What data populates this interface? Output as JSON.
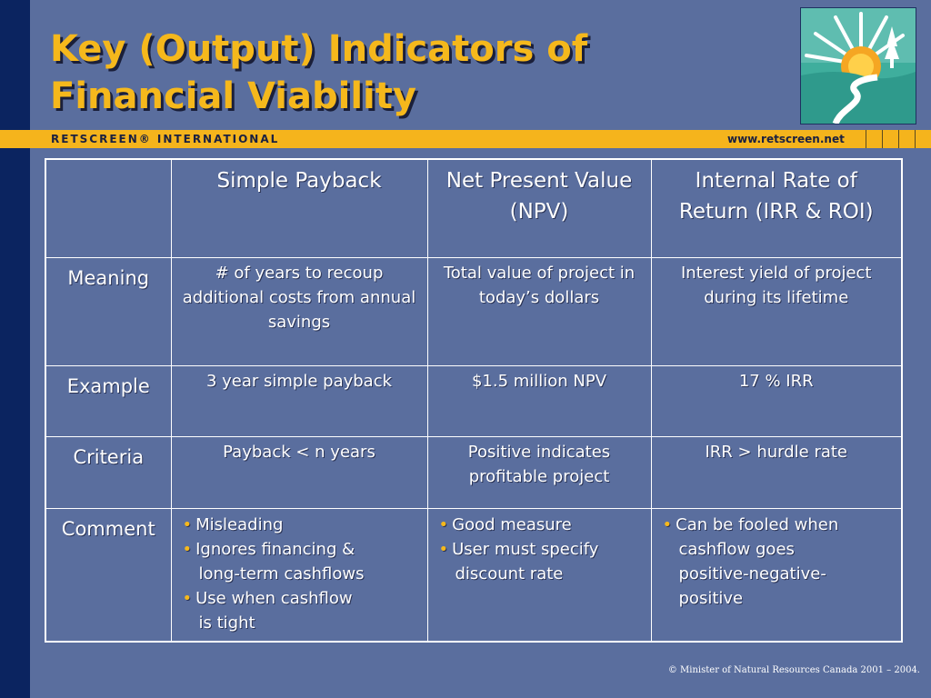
{
  "slide": {
    "title_line1": "Key (Output) Indicators of",
    "title_line2": "Financial Viability",
    "brand": "RETSCREEN® INTERNATIONAL",
    "website": "www.retscreen.net",
    "copyright": "© Minister of Natural Resources Canada 2001 – 2004."
  },
  "colors": {
    "background": "#5a6e9e",
    "left_bar": "#0b2460",
    "accent": "#f5b41c",
    "text": "#ffffff"
  },
  "table": {
    "headers": [
      "",
      "Simple Payback",
      "Net Present Value (NPV)",
      "Internal Rate of Return (IRR & ROI)"
    ],
    "header_lines": {
      "npv_1": "Net Present Value",
      "npv_2": "(NPV)",
      "irr_1": "Internal Rate of",
      "irr_2": "Return (IRR & ROI)"
    },
    "rows": [
      {
        "label": "Meaning",
        "cells": [
          "# of years to recoup additional costs from annual savings",
          "Total value of project in today’s dollars",
          "Interest yield of project during its lifetime"
        ]
      },
      {
        "label": "Example",
        "cells": [
          "3 year simple payback",
          "$1.5 million NPV",
          "17 % IRR"
        ]
      },
      {
        "label": "Criteria",
        "cells": [
          "Payback < n years",
          "Positive indicates profitable project",
          "IRR > hurdle rate"
        ]
      }
    ],
    "comment": {
      "label": "Comment",
      "payback": {
        "b1": "Misleading",
        "b2_1": "Ignores financing &",
        "b2_2": "long-term cashflows",
        "b3_1": "Use when cashflow",
        "b3_2": "is tight"
      },
      "npv": {
        "b1": "Good measure",
        "b2_1": "User must specify",
        "b2_2": "discount rate"
      },
      "irr": {
        "b1_1": "Can be fooled when",
        "b1_2": "cashflow goes",
        "b1_3": "positive-negative-",
        "b1_4": "positive"
      }
    },
    "bullet": "•"
  }
}
